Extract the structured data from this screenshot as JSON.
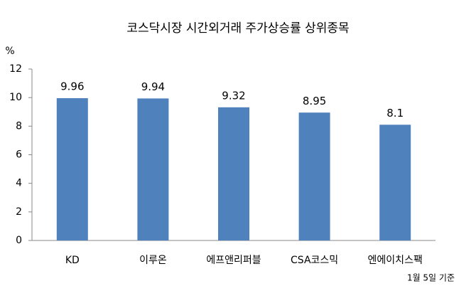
{
  "chart_data": {
    "type": "bar",
    "title": "코스닥시장 시간외거래  주가상승률 상위종목",
    "y_axis_label": "%",
    "annotation": "1월 5일 기준",
    "categories": [
      "KD",
      "이루온",
      "에프앤리퍼블",
      "CSA코스믹",
      "엔에이치스팩"
    ],
    "values": [
      9.96,
      9.94,
      9.32,
      8.95,
      8.1
    ],
    "color": "#4f81bd",
    "ylim": [
      0,
      12
    ],
    "yticks": [
      0,
      2,
      4,
      6,
      8,
      10,
      12
    ],
    "grid": false
  }
}
